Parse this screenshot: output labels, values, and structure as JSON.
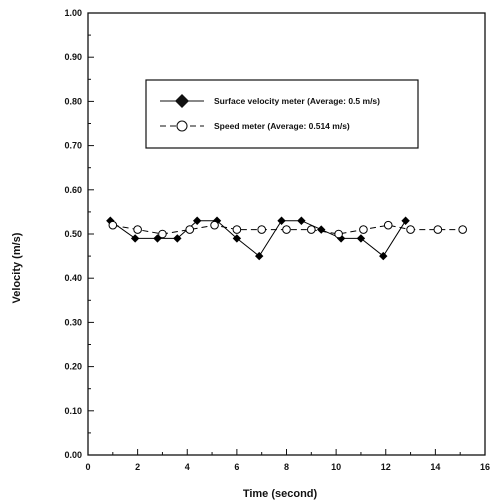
{
  "chart_data": {
    "type": "line",
    "xlabel": "Time (second)",
    "ylabel": "Velocity (m/s)",
    "xlim": [
      0,
      16
    ],
    "ylim": [
      0,
      1
    ],
    "x_ticks": [
      "0",
      "2",
      "4",
      "6",
      "8",
      "10",
      "12",
      "14",
      "16"
    ],
    "y_ticks": [
      "0.00",
      "0.10",
      "0.20",
      "0.30",
      "0.40",
      "0.50",
      "0.60",
      "0.70",
      "0.80",
      "0.90",
      "1.00"
    ],
    "grid": false,
    "legend_placement": "upper-right",
    "series": [
      {
        "name": "Surface velocity meter (Average: 0.5 m/s)",
        "marker": "filled-diamond",
        "line_style": "solid",
        "color": "#000000",
        "points": [
          [
            0.9,
            0.53
          ],
          [
            1.9,
            0.49
          ],
          [
            2.8,
            0.49
          ],
          [
            3.6,
            0.49
          ],
          [
            4.4,
            0.53
          ],
          [
            5.2,
            0.53
          ],
          [
            6.0,
            0.49
          ],
          [
            6.9,
            0.45
          ],
          [
            7.8,
            0.53
          ],
          [
            8.6,
            0.53
          ],
          [
            9.4,
            0.51
          ],
          [
            10.2,
            0.49
          ],
          [
            11.0,
            0.49
          ],
          [
            11.9,
            0.45
          ],
          [
            12.8,
            0.53
          ]
        ]
      },
      {
        "name": "Speed meter (Average: 0.514 m/s)",
        "marker": "open-circle",
        "line_style": "dashed",
        "color": "#000000",
        "points": [
          [
            1.0,
            0.52
          ],
          [
            2.0,
            0.51
          ],
          [
            3.0,
            0.5
          ],
          [
            4.1,
            0.51
          ],
          [
            5.1,
            0.52
          ],
          [
            6.0,
            0.51
          ],
          [
            7.0,
            0.51
          ],
          [
            8.0,
            0.51
          ],
          [
            9.0,
            0.51
          ],
          [
            10.1,
            0.5
          ],
          [
            11.1,
            0.51
          ],
          [
            12.1,
            0.52
          ],
          [
            13.0,
            0.51
          ],
          [
            14.1,
            0.51
          ],
          [
            15.1,
            0.51
          ]
        ]
      }
    ]
  }
}
